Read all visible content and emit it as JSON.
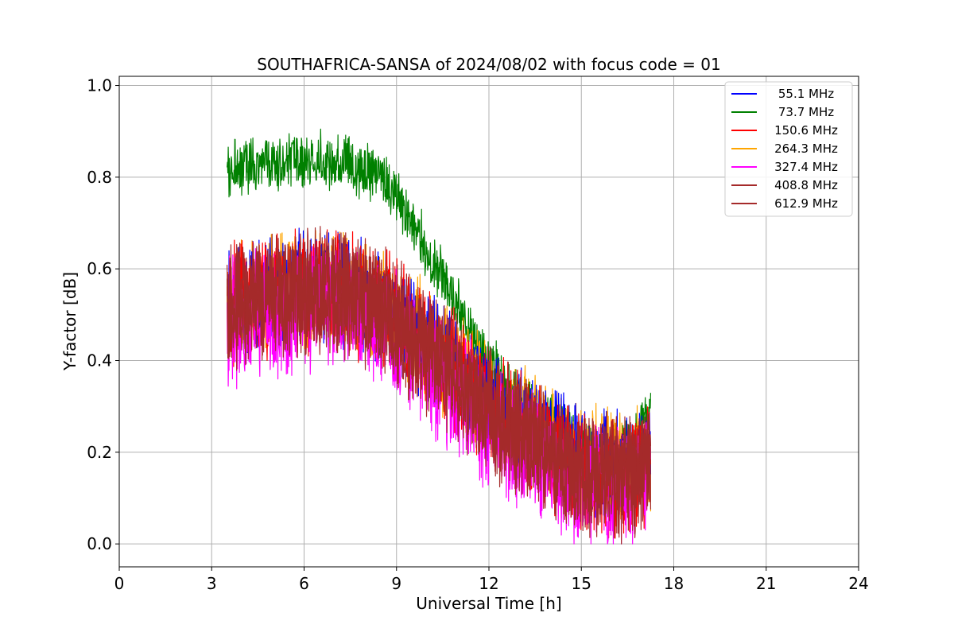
{
  "chart_data": {
    "type": "line",
    "title": "SOUTHAFRICA-SANSA of 2024/08/02 with focus code = 01",
    "xlabel": "Universal Time [h]",
    "ylabel": "Y-factor [dB]",
    "xlim": [
      0,
      24
    ],
    "ylim": [
      -0.05,
      1.02
    ],
    "xticks": [
      0,
      3,
      6,
      9,
      12,
      15,
      18,
      21,
      24
    ],
    "yticks": [
      0.0,
      0.2,
      0.4,
      0.6,
      0.8,
      1.0
    ],
    "xtick_labels": [
      "0",
      "3",
      "6",
      "9",
      "12",
      "15",
      "18",
      "21",
      "24"
    ],
    "ytick_labels": [
      "0.0",
      "0.2",
      "0.4",
      "0.6",
      "0.8",
      "1.0"
    ],
    "grid": true,
    "legend_position": "top-right",
    "x": [
      3.5,
      4.5,
      5.5,
      6.5,
      7.5,
      8.5,
      9.5,
      10.5,
      11.5,
      12.5,
      13.5,
      14.5,
      15.5,
      16.5,
      17.25
    ],
    "series": [
      {
        "name": " 55.1 MHz",
        "color": "#0000ff",
        "values": [
          0.52,
          0.55,
          0.56,
          0.57,
          0.56,
          0.52,
          0.46,
          0.4,
          0.34,
          0.28,
          0.24,
          0.2,
          0.17,
          0.16,
          0.19
        ],
        "spread": 0.14
      },
      {
        "name": " 73.7 MHz",
        "color": "#008000",
        "values": [
          0.82,
          0.83,
          0.83,
          0.84,
          0.83,
          0.8,
          0.7,
          0.58,
          0.45,
          0.35,
          0.29,
          0.24,
          0.2,
          0.2,
          0.28
        ],
        "spread": 0.07
      },
      {
        "name": "150.6 MHz",
        "color": "#ff0000",
        "values": [
          0.52,
          0.54,
          0.55,
          0.56,
          0.55,
          0.52,
          0.46,
          0.4,
          0.33,
          0.27,
          0.23,
          0.18,
          0.15,
          0.14,
          0.18
        ],
        "spread": 0.15
      },
      {
        "name": "264.3 MHz",
        "color": "#ffa500",
        "values": [
          0.52,
          0.54,
          0.55,
          0.56,
          0.55,
          0.52,
          0.47,
          0.41,
          0.35,
          0.29,
          0.25,
          0.21,
          0.18,
          0.17,
          0.19
        ],
        "spread": 0.14
      },
      {
        "name": "327.4 MHz",
        "color": "#ff00ff",
        "values": [
          0.48,
          0.49,
          0.5,
          0.52,
          0.51,
          0.48,
          0.42,
          0.36,
          0.29,
          0.23,
          0.19,
          0.14,
          0.12,
          0.12,
          0.15
        ],
        "spread": 0.16
      },
      {
        "name": "408.8 MHz",
        "color": "#a52a2a",
        "values": [
          0.51,
          0.53,
          0.54,
          0.55,
          0.54,
          0.51,
          0.45,
          0.39,
          0.32,
          0.26,
          0.22,
          0.17,
          0.15,
          0.14,
          0.17
        ],
        "spread": 0.15
      },
      {
        "name": "612.9 MHz",
        "color": "#a52a2a",
        "values": [
          0.51,
          0.53,
          0.54,
          0.55,
          0.54,
          0.51,
          0.45,
          0.39,
          0.32,
          0.26,
          0.22,
          0.17,
          0.15,
          0.14,
          0.17
        ],
        "spread": 0.15
      }
    ]
  }
}
